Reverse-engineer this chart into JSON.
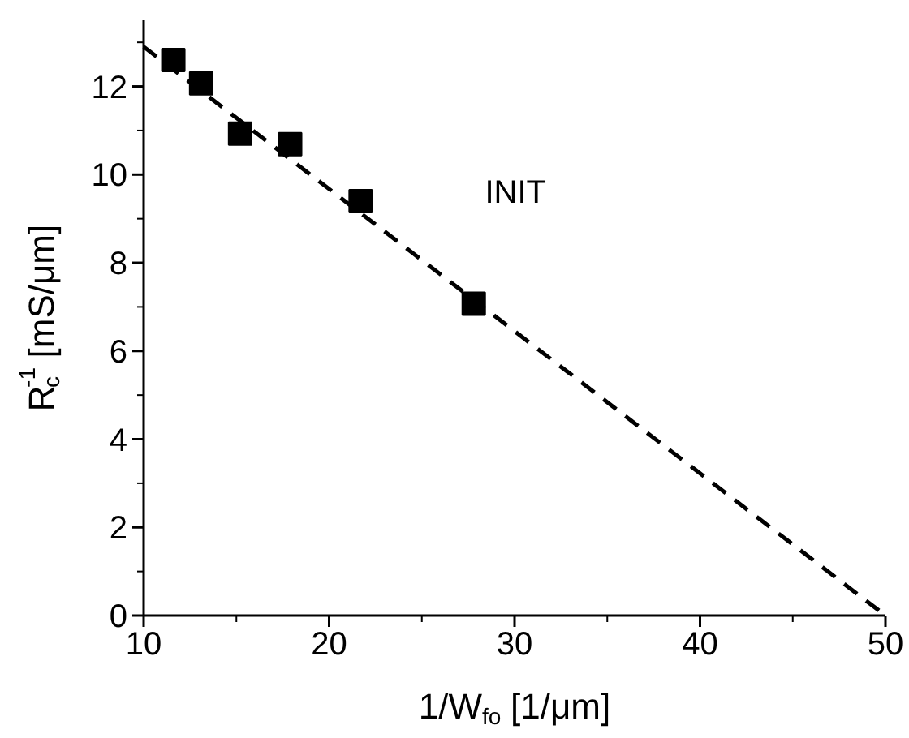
{
  "chart_data": {
    "type": "scatter",
    "xlabel": "1/W$_{fo}$ [1/μm]",
    "ylabel": "R$_{c}$$^{-1}$ [mS/μm]",
    "annotations": [
      "INIT"
    ],
    "series": [
      {
        "color": "#000000",
        "marker": "square",
        "x": [
          11.6,
          13.1,
          15.2,
          17.9,
          21.7,
          27.8
        ],
        "values": [
          12.6,
          12.07,
          10.93,
          10.69,
          9.4,
          7.07
        ]
      },
      {
        "type": "line",
        "color": "#000000",
        "line_style": "dashed",
        "x": [
          10,
          50
        ],
        "values": [
          12.9,
          0
        ]
      }
    ],
    "xlim": [
      10,
      50
    ],
    "xticks": [
      10,
      20,
      30,
      40,
      50
    ],
    "ylim": [
      0,
      13.5
    ],
    "yticks": [
      0,
      2,
      4,
      6,
      8,
      10,
      12
    ],
    "grid": false
  }
}
